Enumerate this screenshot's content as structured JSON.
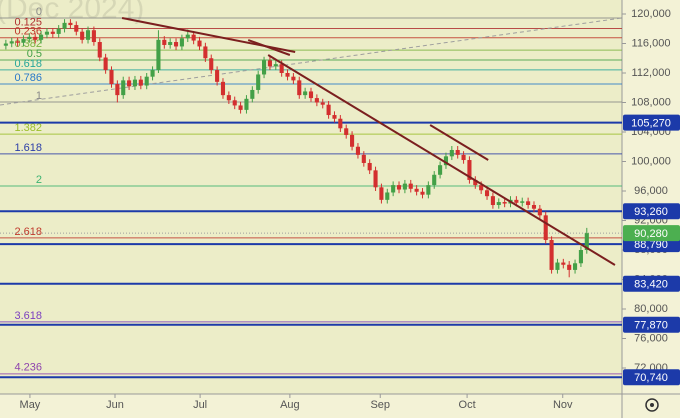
{
  "chart_data": {
    "type": "candlestick",
    "title": "(Dec 2024)",
    "xlim": [
      0,
      106
    ],
    "xticks": [
      {
        "value": 5.1,
        "label": "May"
      },
      {
        "value": 19.6,
        "label": "Jun"
      },
      {
        "value": 34.1,
        "label": "Jul"
      },
      {
        "value": 49.4,
        "label": "Aug"
      },
      {
        "value": 64.8,
        "label": "Sep"
      },
      {
        "value": 79.6,
        "label": "Oct"
      },
      {
        "value": 95.9,
        "label": "Nov"
      }
    ],
    "ylim": [
      68475,
      121898
    ],
    "yticks": [
      {
        "value": 120000,
        "label": "120,000"
      },
      {
        "value": 116000,
        "label": "116,000"
      },
      {
        "value": 112000,
        "label": "112,000"
      },
      {
        "value": 108000,
        "label": "108,000"
      },
      {
        "value": 104000,
        "label": "104,000"
      },
      {
        "value": 100000,
        "label": "100,000"
      },
      {
        "value": 96000,
        "label": "96,000"
      },
      {
        "value": 92000,
        "label": "92,000"
      },
      {
        "value": 88000,
        "label": "88,000"
      },
      {
        "value": 84000,
        "label": "84,000"
      },
      {
        "value": 80000,
        "label": "80,000"
      },
      {
        "value": 76000,
        "label": "76,000"
      },
      {
        "value": 72000,
        "label": "72,000"
      }
    ],
    "up_color": "#43a047",
    "down_color": "#d32f2f",
    "candles": {
      "open": [
        115700,
        116000,
        116300,
        116100,
        116600,
        116900,
        116500,
        117200,
        117600,
        117300,
        118000,
        118800,
        118500,
        117600,
        116500,
        117800,
        116200,
        114100,
        112400,
        110500,
        109000,
        111000,
        110200,
        111100,
        110300,
        111500,
        112400,
        116500,
        115800,
        116200,
        115600,
        116700,
        117200,
        116400,
        115600,
        114000,
        112400,
        110800,
        109000,
        108300,
        107600,
        107000,
        108500,
        109700,
        111800,
        113700,
        112900,
        113200,
        112000,
        111500,
        111000,
        109000,
        109500,
        108600,
        108000,
        107700,
        106300,
        105800,
        104500,
        103600,
        102000,
        100900,
        99800,
        98800,
        96500,
        94800,
        95800,
        96800,
        96200,
        97000,
        96300,
        95900,
        95500,
        96800,
        98200,
        99500,
        100700,
        101560,
        100900,
        100200,
        97500,
        96800,
        96100,
        95300,
        94100,
        94500,
        94300,
        94800,
        94400,
        94600,
        94100,
        93600,
        92700,
        89360,
        85300,
        86300,
        86000,
        85300,
        86200,
        88000
      ],
      "high": [
        116500,
        116800,
        116800,
        117100,
        117400,
        117400,
        117700,
        118100,
        118100,
        118500,
        119300,
        119300,
        119000,
        118100,
        118300,
        118300,
        116700,
        114600,
        112900,
        111000,
        111500,
        111500,
        111600,
        111600,
        112000,
        112900,
        117800,
        117000,
        116700,
        116700,
        117200,
        117900,
        117700,
        116900,
        116100,
        114500,
        112900,
        111300,
        109500,
        108800,
        108100,
        109000,
        110200,
        112300,
        114200,
        114200,
        113700,
        113700,
        112500,
        112000,
        111500,
        110000,
        110000,
        109100,
        108500,
        108200,
        106800,
        106300,
        105000,
        104100,
        102500,
        101400,
        100300,
        99300,
        97000,
        96300,
        97300,
        97300,
        97500,
        97500,
        96800,
        96400,
        97300,
        98700,
        100000,
        101200,
        102100,
        102100,
        101400,
        100700,
        98000,
        97300,
        96600,
        95800,
        95000,
        95000,
        95300,
        95300,
        95100,
        95100,
        94600,
        94100,
        93200,
        89860,
        86800,
        86800,
        86500,
        86700,
        88500,
        91000
      ],
      "low": [
        115200,
        115500,
        115600,
        115600,
        116100,
        116000,
        116000,
        116700,
        116800,
        116800,
        117500,
        118000,
        117100,
        116000,
        116000,
        115700,
        113600,
        111900,
        110000,
        108000,
        108500,
        109700,
        109700,
        109800,
        109800,
        111000,
        112000,
        115300,
        115300,
        115100,
        115100,
        116200,
        115900,
        115100,
        113500,
        111900,
        110300,
        108500,
        107800,
        107100,
        106500,
        106500,
        108000,
        109200,
        111300,
        112400,
        112400,
        111500,
        111000,
        110500,
        108500,
        108500,
        108100,
        107500,
        107200,
        105800,
        105300,
        104000,
        103100,
        101500,
        100400,
        99300,
        98300,
        96000,
        94300,
        94300,
        95300,
        95700,
        95700,
        95800,
        95400,
        95000,
        95000,
        96300,
        97700,
        99000,
        100200,
        100400,
        99700,
        97000,
        96300,
        95600,
        94800,
        93600,
        93600,
        93800,
        93800,
        93900,
        93900,
        93600,
        93100,
        92200,
        88860,
        84800,
        84800,
        85500,
        84300,
        84800,
        85700,
        87500
      ],
      "close": [
        116000,
        116300,
        116100,
        116600,
        116900,
        116500,
        117200,
        117600,
        117300,
        118000,
        118800,
        118500,
        117600,
        116500,
        117800,
        116200,
        114100,
        112400,
        110500,
        109000,
        111000,
        110200,
        111100,
        110300,
        111500,
        112400,
        116500,
        115800,
        116200,
        115600,
        116700,
        117200,
        116400,
        115600,
        114000,
        112400,
        110800,
        109000,
        108300,
        107600,
        107000,
        108500,
        109700,
        111800,
        113700,
        112900,
        113200,
        112000,
        111500,
        111000,
        109000,
        109500,
        108600,
        108000,
        107700,
        106300,
        105800,
        104500,
        103600,
        102000,
        100900,
        99800,
        98800,
        96500,
        94800,
        95800,
        96800,
        96200,
        97000,
        96300,
        95900,
        95500,
        96800,
        98200,
        99500,
        100700,
        101560,
        100900,
        100200,
        97500,
        96800,
        96100,
        95300,
        94100,
        94500,
        94300,
        94800,
        94400,
        94600,
        94100,
        93600,
        92700,
        89360,
        85300,
        86300,
        86000,
        85300,
        86200,
        88000,
        90280
      ]
    },
    "price_lines": {
      "color": "#1c3aa9",
      "values": [
        105270,
        93260,
        88790,
        83420,
        77870,
        70740
      ],
      "value_labels": [
        "105,270",
        "93,260",
        "88,790",
        "83,420",
        "77,870",
        "70,740"
      ]
    },
    "last_price": {
      "value": 90280,
      "label": "90,280",
      "color": "#4caf50"
    },
    "fib": {
      "start": 119460,
      "end": 108070,
      "levels": [
        0,
        0.125,
        0.236,
        0.382,
        0.5,
        0.618,
        0.786,
        1,
        1.382,
        1.618,
        2,
        2.618,
        3.618,
        4.236
      ],
      "colors": [
        "#888888",
        "#b03030",
        "#c0392b",
        "#7cb342",
        "#43a047",
        "#26a69a",
        "#2979c9",
        "#888888",
        "#9bbf2a",
        "#2c3ea8",
        "#3cb371",
        "#c0392b",
        "#7b3fbf",
        "#8e44ad"
      ]
    },
    "trendlines": {
      "color": "#7b1f1f",
      "lines": [
        {
          "x": [
            20.8,
            50.3
          ],
          "y": [
            119460,
            114850
          ]
        },
        {
          "x": [
            42.3,
            49.4
          ],
          "y": [
            116470,
            114440
          ]
        },
        {
          "x": [
            45.7,
            104.8
          ],
          "y": [
            114440,
            85970
          ]
        },
        {
          "x": [
            73.3,
            83.2
          ],
          "y": [
            104950,
            100200
          ]
        }
      ]
    },
    "dashed_line": {
      "color": "#9e9e9e",
      "x": [
        0,
        106
      ],
      "y": [
        107660,
        119460
      ]
    }
  }
}
